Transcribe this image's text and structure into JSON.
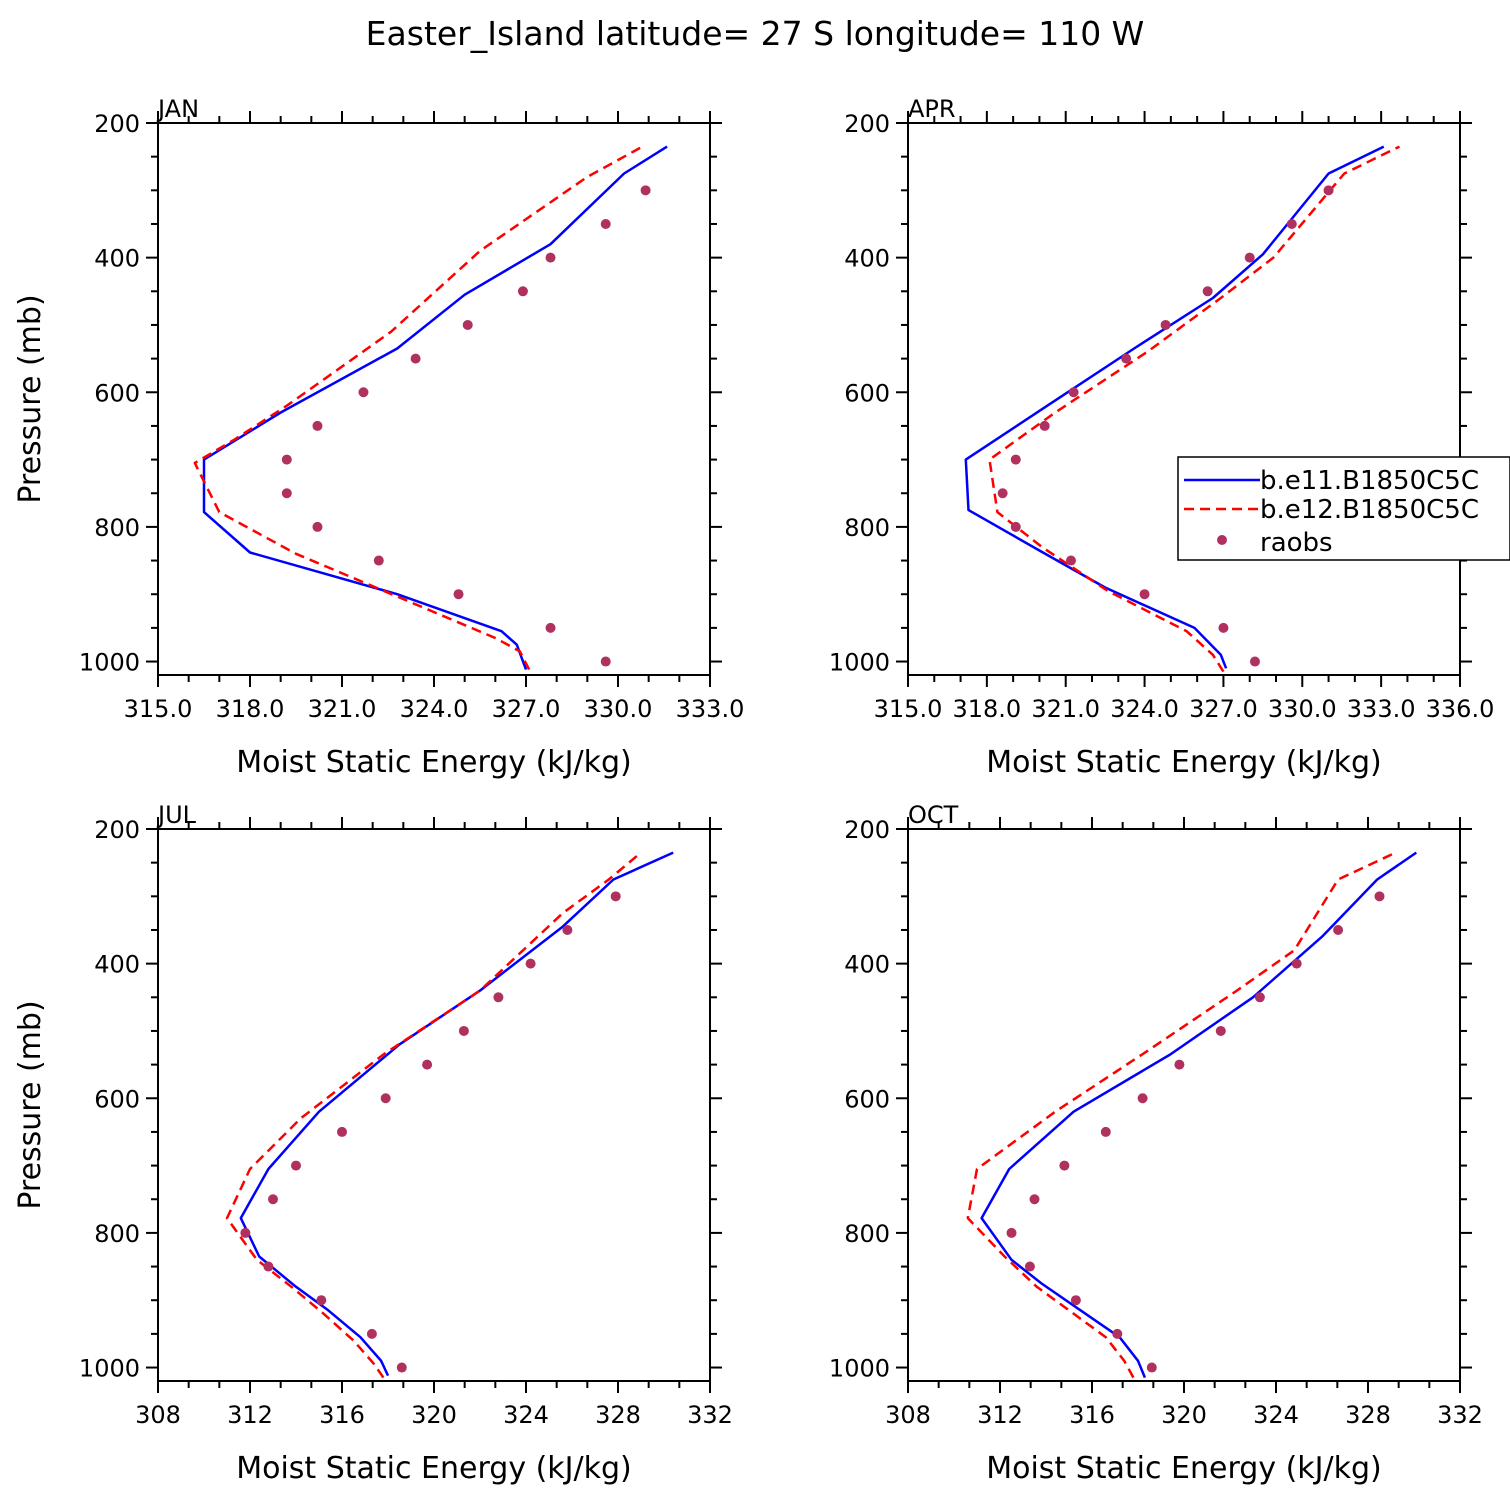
{
  "figure": {
    "title": "Easter_Island  latitude= 27 S longitude= 110 W"
  },
  "legend": {
    "location": "JAN-APR right edge",
    "entries": [
      {
        "label": "b.e11.B1850C5C",
        "style": "solid",
        "color": "#0000ff"
      },
      {
        "label": "b.e12.B1850C5C",
        "style": "dashed",
        "color": "#ff0000"
      },
      {
        "label": "raobs",
        "style": "marker",
        "color": "#b03060"
      }
    ]
  },
  "chart_data": [
    {
      "type": "line",
      "title": "JAN",
      "xlabel": "Moist Static Energy (kJ/kg)",
      "ylabel": "Pressure (mb)",
      "xlim": [
        315,
        333
      ],
      "ylim": [
        1020,
        200
      ],
      "xticks": [
        "315.0",
        "318.0",
        "321.0",
        "324.0",
        "327.0",
        "330.0",
        "333.0"
      ],
      "yticks": [
        "200",
        "400",
        "600",
        "800",
        "1000"
      ],
      "series": [
        {
          "name": "b.e11.B1850C5C",
          "color": "#0000ff",
          "style": "solid",
          "x": [
            327.0,
            326.7,
            326.2,
            322.8,
            318.0,
            316.5,
            316.5,
            319.0,
            322.8,
            325.0,
            327.8,
            330.2,
            331.6
          ],
          "y": [
            1012,
            975,
            955,
            900,
            838,
            778,
            700,
            630,
            535,
            455,
            380,
            275,
            235
          ]
        },
        {
          "name": "b.e12.B1850C5C",
          "color": "#ff0000",
          "style": "dashed",
          "x": [
            327.1,
            326.8,
            326.0,
            323.4,
            319.5,
            317.0,
            316.2,
            317.5,
            319.2,
            322.6,
            325.5,
            329.0,
            330.8
          ],
          "y": [
            1012,
            985,
            965,
            915,
            840,
            778,
            705,
            670,
            620,
            510,
            390,
            280,
            235
          ]
        },
        {
          "name": "raobs",
          "color": "#b03060",
          "style": "marker",
          "x": [
            329.6,
            327.8,
            324.8,
            322.2,
            320.2,
            319.2,
            319.2,
            320.2,
            321.7,
            323.4,
            325.1,
            326.9,
            327.8,
            329.6,
            330.9
          ],
          "y": [
            1000,
            950,
            900,
            850,
            800,
            750,
            700,
            650,
            600,
            550,
            500,
            450,
            400,
            350,
            300
          ]
        }
      ]
    },
    {
      "type": "line",
      "title": "APR",
      "xlabel": "Moist Static Energy (kJ/kg)",
      "ylabel": "",
      "xlim": [
        315,
        336
      ],
      "ylim": [
        1020,
        200
      ],
      "xticks": [
        "315.0",
        "318.0",
        "321.0",
        "324.0",
        "327.0",
        "330.0",
        "333.0",
        "336.0"
      ],
      "yticks": [
        "200",
        "400",
        "600",
        "800",
        "1000"
      ],
      "series": [
        {
          "name": "b.e11.B1850C5C",
          "color": "#0000ff",
          "style": "solid",
          "x": [
            327.1,
            326.9,
            325.9,
            322.5,
            320.0,
            317.3,
            317.2,
            320.3,
            323.6,
            326.6,
            328.5,
            331.0,
            333.1
          ],
          "y": [
            1010,
            990,
            950,
            890,
            835,
            775,
            700,
            620,
            535,
            460,
            395,
            275,
            235
          ]
        },
        {
          "name": "b.e12.B1850C5C",
          "color": "#ff0000",
          "style": "dashed",
          "x": [
            327.0,
            326.6,
            325.6,
            322.6,
            320.1,
            318.4,
            318.1,
            320.6,
            324.1,
            326.9,
            328.9,
            331.6,
            333.7
          ],
          "y": [
            1015,
            990,
            955,
            895,
            830,
            778,
            700,
            630,
            540,
            460,
            400,
            275,
            235
          ]
        },
        {
          "name": "raobs",
          "color": "#b03060",
          "style": "marker",
          "x": [
            328.2,
            327.0,
            324.0,
            321.2,
            319.1,
            318.6,
            319.1,
            320.2,
            321.3,
            323.3,
            324.8,
            326.4,
            328.0,
            329.6,
            331.0
          ],
          "y": [
            1000,
            950,
            900,
            850,
            800,
            750,
            700,
            650,
            600,
            550,
            500,
            450,
            400,
            350,
            300
          ]
        }
      ]
    },
    {
      "type": "line",
      "title": "JUL",
      "xlabel": "Moist Static Energy (kJ/kg)",
      "ylabel": "Pressure (mb)",
      "xlim": [
        308,
        332
      ],
      "ylim": [
        1020,
        200
      ],
      "xticks": [
        "308",
        "312",
        "316",
        "320",
        "324",
        "328",
        "332"
      ],
      "yticks": [
        "200",
        "400",
        "600",
        "800",
        "1000"
      ],
      "series": [
        {
          "name": "b.e11.B1850C5C",
          "color": "#0000ff",
          "style": "solid",
          "x": [
            318.0,
            317.7,
            316.8,
            315.4,
            314.0,
            312.4,
            311.6,
            312.8,
            315.0,
            318.5,
            322.0,
            325.6,
            327.8,
            330.4
          ],
          "y": [
            1012,
            990,
            955,
            915,
            880,
            835,
            778,
            705,
            620,
            520,
            440,
            345,
            275,
            235
          ]
        },
        {
          "name": "b.e12.B1850C5C",
          "color": "#ff0000",
          "style": "dashed",
          "x": [
            317.8,
            317.4,
            316.5,
            315.2,
            313.8,
            312.3,
            311.0,
            312.0,
            314.2,
            317.8,
            322.0,
            325.6,
            327.6,
            329.0
          ],
          "y": [
            1015,
            995,
            960,
            920,
            880,
            840,
            778,
            705,
            630,
            535,
            440,
            325,
            275,
            235
          ]
        },
        {
          "name": "raobs",
          "color": "#b03060",
          "style": "marker",
          "x": [
            318.6,
            317.3,
            315.1,
            312.8,
            311.8,
            313.0,
            314.0,
            316.0,
            317.9,
            319.7,
            321.3,
            322.8,
            324.2,
            325.8,
            327.9
          ],
          "y": [
            1000,
            950,
            900,
            850,
            800,
            750,
            700,
            650,
            600,
            550,
            500,
            450,
            400,
            350,
            300
          ]
        }
      ]
    },
    {
      "type": "line",
      "title": "OCT",
      "xlabel": "Moist Static Energy (kJ/kg)",
      "ylabel": "",
      "xlim": [
        308,
        332
      ],
      "ylim": [
        1020,
        200
      ],
      "xticks": [
        "308",
        "312",
        "316",
        "320",
        "324",
        "328",
        "332"
      ],
      "yticks": [
        "200",
        "400",
        "600",
        "800",
        "1000"
      ],
      "series": [
        {
          "name": "b.e11.B1850C5C",
          "color": "#0000ff",
          "style": "solid",
          "x": [
            318.3,
            318.0,
            317.2,
            315.5,
            313.8,
            312.5,
            311.2,
            312.4,
            315.2,
            319.4,
            323.0,
            326.0,
            328.4,
            330.1
          ],
          "y": [
            1015,
            990,
            955,
            915,
            875,
            840,
            778,
            705,
            620,
            535,
            450,
            360,
            275,
            235
          ]
        },
        {
          "name": "b.e12.B1850C5C",
          "color": "#ff0000",
          "style": "dashed",
          "x": [
            317.8,
            317.4,
            316.6,
            315.0,
            313.6,
            312.2,
            310.6,
            311.0,
            314.4,
            318.4,
            322.3,
            324.8,
            326.7,
            329.2
          ],
          "y": [
            1015,
            990,
            955,
            915,
            880,
            835,
            778,
            705,
            620,
            530,
            440,
            380,
            275,
            235
          ]
        },
        {
          "name": "raobs",
          "color": "#b03060",
          "style": "marker",
          "x": [
            318.6,
            317.1,
            315.3,
            313.3,
            312.5,
            313.5,
            314.8,
            316.6,
            318.2,
            319.8,
            321.6,
            323.3,
            324.9,
            326.7,
            328.5
          ],
          "y": [
            1000,
            950,
            900,
            850,
            800,
            750,
            700,
            650,
            600,
            550,
            500,
            450,
            400,
            350,
            300
          ]
        }
      ]
    }
  ]
}
